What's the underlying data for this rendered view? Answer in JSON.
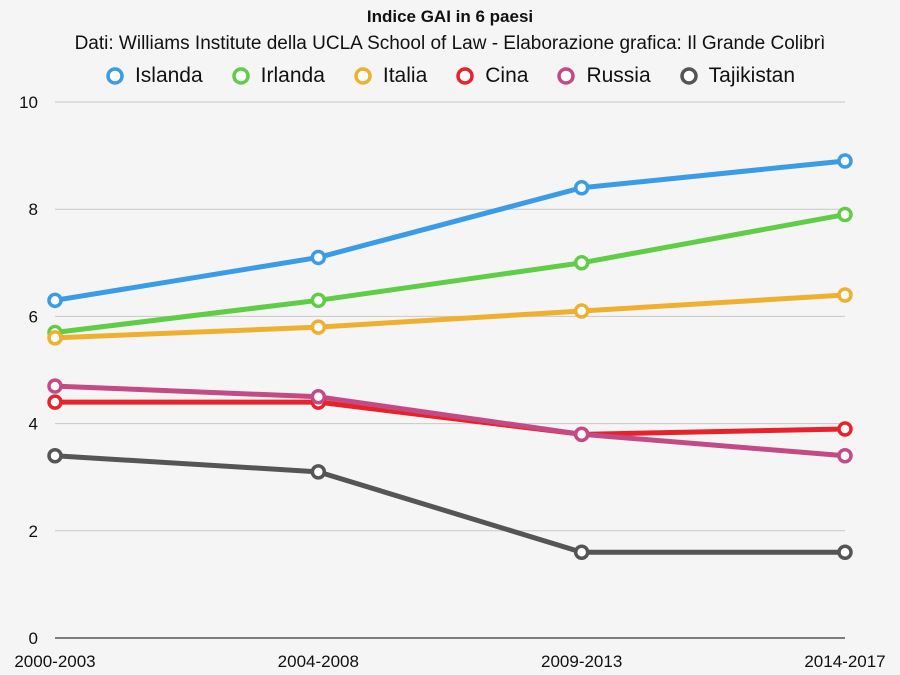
{
  "chart_data": {
    "type": "line",
    "title": "Indice GAI in 6 paesi",
    "subtitle": "Dati: Williams Institute della UCLA School of Law - Elaborazione grafica: Il Grande Colibrì",
    "xlabel": "",
    "ylabel": "",
    "categories": [
      "2000-2003",
      "2004-2008",
      "2009-2013",
      "2014-2017"
    ],
    "ylim": [
      0,
      10
    ],
    "yticks": [
      "0",
      "2",
      "4",
      "6",
      "8",
      "10"
    ],
    "grid": true,
    "legend_position": "top",
    "series": [
      {
        "name": "Islanda",
        "color": "#3a9be6",
        "values": [
          6.3,
          7.1,
          8.4,
          8.9
        ]
      },
      {
        "name": "Irlanda",
        "color": "#5fcd45",
        "values": [
          5.7,
          6.3,
          7.0,
          7.9
        ]
      },
      {
        "name": "Italia",
        "color": "#efb02f",
        "values": [
          5.6,
          5.8,
          6.1,
          6.4
        ]
      },
      {
        "name": "Cina",
        "color": "#e8222a",
        "values": [
          4.4,
          4.4,
          3.8,
          3.9
        ]
      },
      {
        "name": "Russia",
        "color": "#c44a86",
        "values": [
          4.7,
          4.5,
          3.8,
          3.4
        ]
      },
      {
        "name": "Tajikistan",
        "color": "#555555",
        "values": [
          3.4,
          3.1,
          1.6,
          1.6
        ]
      }
    ]
  }
}
